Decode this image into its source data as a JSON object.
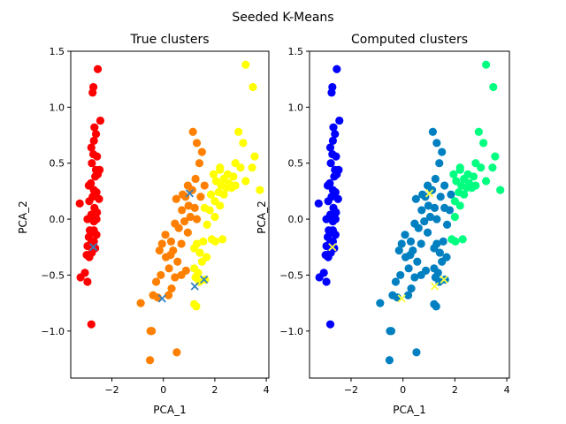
{
  "figure_title": "Seeded K-Means",
  "colors": {
    "left": [
      "#ff0000",
      "#ff8000",
      "#ffff00"
    ],
    "right": [
      "#0000ff",
      "#0080c0",
      "#00ff80"
    ],
    "left_marker": "#3080c0",
    "right_marker": "#ffff40"
  },
  "chart_data": [
    {
      "type": "scatter",
      "title": "True clusters",
      "xlabel": "PCA_1",
      "ylabel": "PCA_2",
      "xlim": [
        -3.6,
        4.1
      ],
      "ylim": [
        -1.42,
        1.5
      ],
      "xticks": [
        -2,
        0,
        2,
        4
      ],
      "yticks": [
        -1.0,
        -0.5,
        0.0,
        0.5,
        1.0,
        1.5
      ],
      "grid": false,
      "colormap": "hsv-like (red, orange, yellow)",
      "points": [
        [
          -2.55,
          1.34,
          0
        ],
        [
          -2.72,
          1.18,
          0
        ],
        [
          -2.75,
          1.13,
          0
        ],
        [
          -2.45,
          0.88,
          0
        ],
        [
          -2.68,
          0.82,
          0
        ],
        [
          -2.62,
          0.76,
          0
        ],
        [
          -2.7,
          0.7,
          0
        ],
        [
          -2.8,
          0.64,
          0
        ],
        [
          -2.72,
          0.58,
          0
        ],
        [
          -2.58,
          0.56,
          0
        ],
        [
          -2.78,
          0.5,
          0
        ],
        [
          -2.62,
          0.44,
          0
        ],
        [
          -2.48,
          0.44,
          0
        ],
        [
          -2.65,
          0.38,
          0
        ],
        [
          -2.55,
          0.4,
          0
        ],
        [
          -2.82,
          0.32,
          0
        ],
        [
          -2.7,
          0.26,
          0
        ],
        [
          -2.9,
          0.3,
          0
        ],
        [
          -2.6,
          0.24,
          0
        ],
        [
          -2.75,
          0.2,
          0
        ],
        [
          -2.5,
          0.18,
          0
        ],
        [
          -2.88,
          0.16,
          0
        ],
        [
          -2.68,
          0.1,
          0
        ],
        [
          -2.58,
          0.06,
          0
        ],
        [
          -3.25,
          0.14,
          0
        ],
        [
          -2.8,
          0.04,
          0
        ],
        [
          -2.7,
          -0.02,
          0
        ],
        [
          -2.95,
          0.0,
          0
        ],
        [
          -2.6,
          0.0,
          0
        ],
        [
          -2.86,
          -0.1,
          0
        ],
        [
          -2.75,
          -0.12,
          0
        ],
        [
          -2.6,
          -0.14,
          0
        ],
        [
          -2.9,
          -0.16,
          0
        ],
        [
          -2.7,
          -0.2,
          0
        ],
        [
          -2.82,
          -0.22,
          0
        ],
        [
          -2.95,
          -0.24,
          0
        ],
        [
          -2.65,
          -0.26,
          0
        ],
        [
          -2.78,
          -0.3,
          0
        ],
        [
          -2.98,
          -0.32,
          0
        ],
        [
          -2.88,
          -0.34,
          0
        ],
        [
          -3.05,
          -0.48,
          0
        ],
        [
          -3.22,
          -0.52,
          0
        ],
        [
          -2.95,
          -0.56,
          0
        ],
        [
          -2.8,
          -0.94,
          0
        ],
        [
          -2.7,
          -0.1,
          0
        ],
        [
          0.52,
          -1.19,
          1
        ],
        [
          -0.5,
          -1.0,
          1
        ],
        [
          -0.45,
          -1.0,
          1
        ],
        [
          -0.52,
          -1.26,
          1
        ],
        [
          -0.88,
          -0.75,
          1
        ],
        [
          -0.4,
          -0.68,
          1
        ],
        [
          -0.22,
          -0.7,
          1
        ],
        [
          0.2,
          -0.68,
          1
        ],
        [
          -0.28,
          -0.56,
          1
        ],
        [
          -0.1,
          -0.5,
          1
        ],
        [
          0.22,
          -0.44,
          1
        ],
        [
          0.32,
          -0.62,
          1
        ],
        [
          0.45,
          -0.52,
          1
        ],
        [
          0.7,
          -0.5,
          1
        ],
        [
          0.88,
          -0.46,
          1
        ],
        [
          0.1,
          -0.34,
          1
        ],
        [
          0.28,
          -0.32,
          1
        ],
        [
          0.55,
          -0.38,
          1
        ],
        [
          0.38,
          -0.28,
          1
        ],
        [
          -0.15,
          -0.28,
          1
        ],
        [
          -0.05,
          -0.22,
          1
        ],
        [
          0.08,
          -0.14,
          1
        ],
        [
          0.3,
          -0.2,
          1
        ],
        [
          0.7,
          -0.22,
          1
        ],
        [
          0.95,
          -0.12,
          1
        ],
        [
          0.6,
          -0.08,
          1
        ],
        [
          0.45,
          -0.04,
          1
        ],
        [
          0.82,
          -0.02,
          1
        ],
        [
          1.05,
          0.02,
          1
        ],
        [
          1.3,
          0.0,
          1
        ],
        [
          0.72,
          0.08,
          1
        ],
        [
          0.98,
          0.12,
          1
        ],
        [
          1.22,
          0.1,
          1
        ],
        [
          0.5,
          0.18,
          1
        ],
        [
          0.86,
          0.2,
          1
        ],
        [
          1.12,
          0.26,
          1
        ],
        [
          1.45,
          0.2,
          1
        ],
        [
          0.95,
          0.3,
          1
        ],
        [
          1.25,
          0.36,
          1
        ],
        [
          1.6,
          0.3,
          1
        ],
        [
          1.4,
          0.5,
          1
        ],
        [
          1.5,
          0.6,
          1
        ],
        [
          1.3,
          0.68,
          1
        ],
        [
          1.15,
          0.78,
          1
        ],
        [
          0.75,
          0.22,
          1
        ],
        [
          3.2,
          1.38,
          2
        ],
        [
          3.48,
          1.18,
          2
        ],
        [
          2.92,
          0.78,
          2
        ],
        [
          3.1,
          0.68,
          2
        ],
        [
          3.55,
          0.56,
          2
        ],
        [
          2.8,
          0.5,
          2
        ],
        [
          3.0,
          0.46,
          2
        ],
        [
          3.45,
          0.46,
          2
        ],
        [
          2.2,
          0.44,
          2
        ],
        [
          2.5,
          0.4,
          2
        ],
        [
          2.72,
          0.38,
          2
        ],
        [
          2.35,
          0.36,
          2
        ],
        [
          3.2,
          0.34,
          2
        ],
        [
          2.55,
          0.32,
          2
        ],
        [
          1.95,
          0.4,
          2
        ],
        [
          2.05,
          0.34,
          2
        ],
        [
          2.25,
          0.3,
          2
        ],
        [
          2.45,
          0.28,
          2
        ],
        [
          2.65,
          0.28,
          2
        ],
        [
          2.8,
          0.3,
          2
        ],
        [
          3.75,
          0.26,
          2
        ],
        [
          2.15,
          0.24,
          2
        ],
        [
          2.35,
          0.22,
          2
        ],
        [
          1.85,
          0.22,
          2
        ],
        [
          2.0,
          0.16,
          2
        ],
        [
          2.2,
          0.12,
          2
        ],
        [
          1.8,
          0.08,
          2
        ],
        [
          1.6,
          0.1,
          2
        ],
        [
          2.0,
          0.02,
          2
        ],
        [
          1.7,
          -0.05,
          2
        ],
        [
          2.3,
          -0.18,
          2
        ],
        [
          2.02,
          -0.2,
          2
        ],
        [
          1.88,
          -0.18,
          2
        ],
        [
          1.55,
          -0.2,
          2
        ],
        [
          1.3,
          -0.22,
          2
        ],
        [
          1.2,
          -0.26,
          2
        ],
        [
          1.42,
          -0.3,
          2
        ],
        [
          1.68,
          -0.34,
          2
        ],
        [
          1.5,
          -0.38,
          2
        ],
        [
          1.2,
          -0.44,
          2
        ],
        [
          1.35,
          -0.48,
          2
        ],
        [
          1.25,
          -0.52,
          2
        ],
        [
          1.62,
          -0.54,
          2
        ],
        [
          1.2,
          -0.76,
          2
        ],
        [
          1.28,
          -0.78,
          2
        ],
        [
          1.4,
          -0.56,
          2
        ],
        [
          2.2,
          0.46,
          2
        ]
      ],
      "markers": [
        [
          -2.72,
          -0.25
        ],
        [
          -0.05,
          -0.71
        ],
        [
          1.02,
          0.23
        ],
        [
          1.22,
          -0.6
        ],
        [
          1.58,
          -0.54
        ]
      ]
    },
    {
      "type": "scatter",
      "title": "Computed clusters",
      "xlabel": "PCA_1",
      "ylabel": "PCA_2",
      "xlim": [
        -3.6,
        4.1
      ],
      "ylim": [
        -1.42,
        1.5
      ],
      "xticks": [
        -2,
        0,
        2,
        4
      ],
      "yticks": [
        -1.0,
        -0.5,
        0.0,
        0.5,
        1.0,
        1.5
      ],
      "grid": false,
      "colormap": "winter-like (blue, teal, green)",
      "use_points_from": 0,
      "recolor_rule": "points with x > 1.85 and y > -0.25 become cluster 2, other non-cluster-0 points become cluster 1",
      "markers": [
        [
          -2.72,
          -0.25
        ],
        [
          -0.05,
          -0.71
        ],
        [
          1.02,
          0.23
        ],
        [
          1.22,
          -0.6
        ],
        [
          1.58,
          -0.54
        ]
      ]
    }
  ]
}
